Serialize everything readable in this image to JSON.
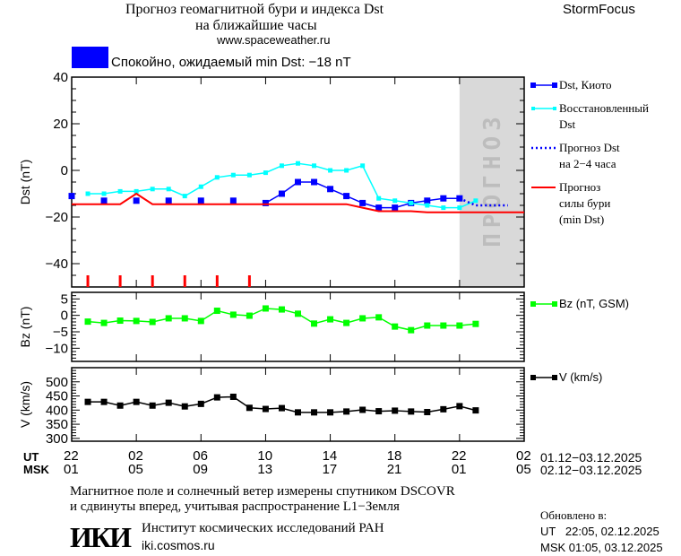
{
  "header": {
    "title_line1": "Прогноз геомагнитной бури и индекса Dst",
    "title_line2": "на ближайшие часы",
    "website": "www.spaceweather.ru",
    "brand": "StormFocus",
    "status_text": "Спокойно, ожидаемый min Dst: −18 nT",
    "status_color": "#0000ff"
  },
  "legend": {
    "dst_kyoto": "Dst, Киото",
    "restored_line1": "Восстановленный",
    "restored_line2": "Dst",
    "forecast_line1": "Прогноз Dst",
    "forecast_line2": "на 2−4 часа",
    "storm_line1": "Прогноз",
    "storm_line2": "силы бури",
    "storm_line3": "(min Dst)",
    "bz": "Bz (nT, GSM)",
    "v": "V (km/s)"
  },
  "axis": {
    "ut_label": "UT",
    "msk_label": "MSK",
    "ut_ticks": [
      "22",
      "02",
      "06",
      "10",
      "14",
      "18",
      "22",
      "02"
    ],
    "msk_ticks": [
      "01",
      "05",
      "09",
      "13",
      "17",
      "21",
      "01",
      "05"
    ],
    "ut_dates": "01.12−03.12.2025",
    "msk_dates": "02.12−03.12.2025"
  },
  "footer": {
    "note_line1": "Магнитное поле и солнечный ветер измерены спутником DSCOVR",
    "note_line2": "и сдвинуты вперед, учитывая распространение L1−Земля",
    "institute": "Институт космических исследований РАН",
    "institute_url": "iki.cosmos.ru",
    "logo_text": "ИКИ",
    "updated_label": "Обновлено в:",
    "updated_ut": "UT   22:05, 02.12.2025",
    "updated_msk": "MSK 01:05, 03.12.2025"
  },
  "chart_data": [
    {
      "type": "line",
      "ylabel": "Dst (nT)",
      "ylim": [
        -50,
        40
      ],
      "yticks": [
        40,
        20,
        0,
        -20,
        -40
      ],
      "x_range": [
        "2025-12-01T22:00",
        "2025-12-03T02:00"
      ],
      "forecast_region": {
        "from": "2025-12-02T22:00",
        "to": "2025-12-03T02:00",
        "label": "ПРОГНОЗ",
        "color": "#d9d9d9"
      },
      "x": [
        "2025-12-01T22:00",
        "2025-12-01T23:00",
        "2025-12-02T00:00",
        "2025-12-02T01:00",
        "2025-12-02T02:00",
        "2025-12-02T03:00",
        "2025-12-02T04:00",
        "2025-12-02T05:00",
        "2025-12-02T06:00",
        "2025-12-02T07:00",
        "2025-12-02T08:00",
        "2025-12-02T09:00",
        "2025-12-02T10:00",
        "2025-12-02T11:00",
        "2025-12-02T12:00",
        "2025-12-02T13:00",
        "2025-12-02T14:00",
        "2025-12-02T15:00",
        "2025-12-02T16:00",
        "2025-12-02T17:00",
        "2025-12-02T18:00",
        "2025-12-02T19:00",
        "2025-12-02T20:00",
        "2025-12-02T21:00",
        "2025-12-02T22:00",
        "2025-12-02T23:00",
        "2025-12-03T00:00",
        "2025-12-03T01:00",
        "2025-12-03T02:00"
      ],
      "series": [
        {
          "name": "Dst, Киото",
          "color": "#0000ff",
          "style": "line-square",
          "values": [
            -11,
            null,
            -13,
            null,
            -13,
            null,
            -13,
            null,
            -13,
            null,
            -13,
            null,
            -14,
            -10,
            -5,
            -5,
            -8,
            -11,
            -14,
            -16,
            -16,
            -14,
            -13,
            -12,
            -12,
            null,
            null,
            null,
            null
          ]
        },
        {
          "name": "Восстановленный Dst",
          "color": "#00ffff",
          "style": "line-square-small",
          "values": [
            null,
            -10,
            -10,
            -9,
            -9,
            -8,
            -8,
            -11,
            -7,
            -3,
            -2,
            -2,
            -1,
            2,
            3,
            2,
            0,
            0,
            2,
            -12,
            -13,
            -14,
            -15,
            -16,
            -16,
            -13,
            null,
            null,
            null
          ]
        },
        {
          "name": "Прогноз Dst на 2−4 часа",
          "color": "#0000ff",
          "style": "dotted",
          "values": [
            null,
            null,
            null,
            null,
            null,
            null,
            null,
            null,
            null,
            null,
            null,
            null,
            null,
            null,
            null,
            null,
            null,
            null,
            null,
            null,
            null,
            null,
            null,
            null,
            -12,
            -15,
            -15,
            -15,
            null
          ]
        },
        {
          "name": "Прогноз силы бури (min Dst)",
          "color": "#ff0000",
          "style": "line",
          "values": [
            -14.5,
            -14.5,
            -14.5,
            -14.5,
            -10,
            -14.5,
            -14.5,
            -14.5,
            -14.5,
            -14.5,
            -14.5,
            -14.5,
            -14.5,
            -14.5,
            -14.5,
            -14.5,
            -14.5,
            -14.5,
            -16,
            -17.5,
            -17.5,
            -17.5,
            -18,
            -18,
            -18,
            -18,
            -18,
            -18,
            -18
          ]
        }
      ],
      "storm_markers": [
        "2025-12-01T23:00",
        "2025-12-02T01:00",
        "2025-12-02T03:00",
        "2025-12-02T05:00",
        "2025-12-02T07:00",
        "2025-12-02T09:00"
      ],
      "storm_marker_color": "#ff0000"
    },
    {
      "type": "line",
      "ylabel": "Bz (nT)",
      "ylim": [
        -14,
        7
      ],
      "yticks": [
        5,
        0,
        -5,
        -10
      ],
      "series": [
        {
          "name": "Bz (nT, GSM)",
          "color": "#00ff00",
          "values": [
            null,
            -1.9,
            -2.3,
            -1.6,
            -1.7,
            -2,
            -0.9,
            -0.9,
            -1.7,
            1.4,
            0.2,
            -0.1,
            2.1,
            1.8,
            0.5,
            -2.5,
            -1.2,
            -2.3,
            -0.9,
            -0.6,
            -3.4,
            -4.5,
            -3.1,
            -3.1,
            -3.1,
            -2.6,
            null,
            null,
            null
          ]
        }
      ]
    },
    {
      "type": "line",
      "ylabel": "V (km/s)",
      "ylim": [
        290,
        550
      ],
      "yticks": [
        500,
        450,
        400,
        350,
        300
      ],
      "series": [
        {
          "name": "V (km/s)",
          "color": "#000000",
          "values": [
            null,
            429,
            429,
            416,
            429,
            416,
            426,
            413,
            422,
            445,
            447,
            408,
            404,
            407,
            392,
            392,
            392,
            395,
            401,
            396,
            398,
            395,
            393,
            403,
            414,
            399,
            null,
            null,
            null
          ]
        }
      ]
    }
  ]
}
